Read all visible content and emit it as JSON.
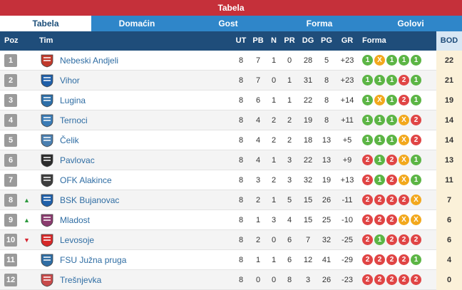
{
  "title": "Tabela",
  "tabs": [
    {
      "label": "Tabela",
      "active": true
    },
    {
      "label": "Domaćin",
      "active": false
    },
    {
      "label": "Gost",
      "active": false
    },
    {
      "label": "Forma",
      "active": false
    },
    {
      "label": "Golovi",
      "active": false
    }
  ],
  "columns": {
    "poz": "Poz",
    "tim": "Tim",
    "ut": "UT",
    "pb": "PB",
    "n": "N",
    "pr": "PR",
    "dg": "DG",
    "pg": "PG",
    "gr": "GR",
    "forma": "Forma",
    "bod": "BOD"
  },
  "colors": {
    "win": "#5cb545",
    "draw": "#f2a81d",
    "loss": "#e04545",
    "header": "#1f4d7a",
    "title": "#c5303a"
  },
  "rows": [
    {
      "poz": "1",
      "trend": "",
      "name": "Nebeski Andjeli",
      "ut": "8",
      "pb": "7",
      "n": "1",
      "pr": "0",
      "dg": "28",
      "pg": "5",
      "gr": "+23",
      "form": [
        "1",
        "X",
        "1",
        "1",
        "1"
      ],
      "bod": "22",
      "crest": "#c0392b"
    },
    {
      "poz": "2",
      "trend": "",
      "name": "Vihor",
      "ut": "8",
      "pb": "7",
      "n": "0",
      "pr": "1",
      "dg": "31",
      "pg": "8",
      "gr": "+23",
      "form": [
        "1",
        "1",
        "1",
        "2",
        "1"
      ],
      "bod": "21",
      "crest": "#1f5fa8"
    },
    {
      "poz": "3",
      "trend": "",
      "name": "Lugina",
      "ut": "8",
      "pb": "6",
      "n": "1",
      "pr": "1",
      "dg": "22",
      "pg": "8",
      "gr": "+14",
      "form": [
        "1",
        "X",
        "1",
        "2",
        "1"
      ],
      "bod": "19",
      "crest": "#2e6fa8"
    },
    {
      "poz": "4",
      "trend": "",
      "name": "Ternoci",
      "ut": "8",
      "pb": "4",
      "n": "2",
      "pr": "2",
      "dg": "19",
      "pg": "8",
      "gr": "+11",
      "form": [
        "1",
        "1",
        "1",
        "X",
        "2"
      ],
      "bod": "14",
      "crest": "#3a7bb5"
    },
    {
      "poz": "5",
      "trend": "",
      "name": "Čelik",
      "ut": "8",
      "pb": "4",
      "n": "2",
      "pr": "2",
      "dg": "18",
      "pg": "13",
      "gr": "+5",
      "form": [
        "1",
        "1",
        "1",
        "X",
        "2"
      ],
      "bod": "14",
      "crest": "#4a7fb0"
    },
    {
      "poz": "6",
      "trend": "",
      "name": "Pavlovac",
      "ut": "8",
      "pb": "4",
      "n": "1",
      "pr": "3",
      "dg": "22",
      "pg": "13",
      "gr": "+9",
      "form": [
        "2",
        "1",
        "2",
        "X",
        "1"
      ],
      "bod": "13",
      "crest": "#2b2b2b"
    },
    {
      "poz": "7",
      "trend": "",
      "name": "OFK Alakince",
      "ut": "8",
      "pb": "3",
      "n": "2",
      "pr": "3",
      "dg": "32",
      "pg": "19",
      "gr": "+13",
      "form": [
        "2",
        "1",
        "2",
        "X",
        "1"
      ],
      "bod": "11",
      "crest": "#3d3d3d"
    },
    {
      "poz": "8",
      "trend": "up",
      "name": "BSK Bujanovac",
      "ut": "8",
      "pb": "2",
      "n": "1",
      "pr": "5",
      "dg": "15",
      "pg": "26",
      "gr": "-11",
      "form": [
        "2",
        "2",
        "2",
        "2",
        "X"
      ],
      "bod": "7",
      "crest": "#1f5fa8"
    },
    {
      "poz": "9",
      "trend": "up",
      "name": "Mladost",
      "ut": "8",
      "pb": "1",
      "n": "3",
      "pr": "4",
      "dg": "15",
      "pg": "25",
      "gr": "-10",
      "form": [
        "2",
        "2",
        "2",
        "X",
        "X"
      ],
      "bod": "6",
      "crest": "#8a3b6e"
    },
    {
      "poz": "10",
      "trend": "down",
      "name": "Levosoje",
      "ut": "8",
      "pb": "2",
      "n": "0",
      "pr": "6",
      "dg": "7",
      "pg": "32",
      "gr": "-25",
      "form": [
        "2",
        "1",
        "2",
        "2",
        "2"
      ],
      "bod": "6",
      "crest": "#d62828"
    },
    {
      "poz": "11",
      "trend": "",
      "name": "FSU Južna pruga",
      "ut": "8",
      "pb": "1",
      "n": "1",
      "pr": "6",
      "dg": "12",
      "pg": "41",
      "gr": "-29",
      "form": [
        "2",
        "2",
        "2",
        "2",
        "1"
      ],
      "bod": "4",
      "crest": "#2f6da3"
    },
    {
      "poz": "12",
      "trend": "",
      "name": "Trešnjevka",
      "ut": "8",
      "pb": "0",
      "n": "0",
      "pr": "8",
      "dg": "3",
      "pg": "26",
      "gr": "-23",
      "form": [
        "2",
        "2",
        "2",
        "2",
        "2"
      ],
      "bod": "0",
      "crest": "#c84a4a"
    }
  ]
}
